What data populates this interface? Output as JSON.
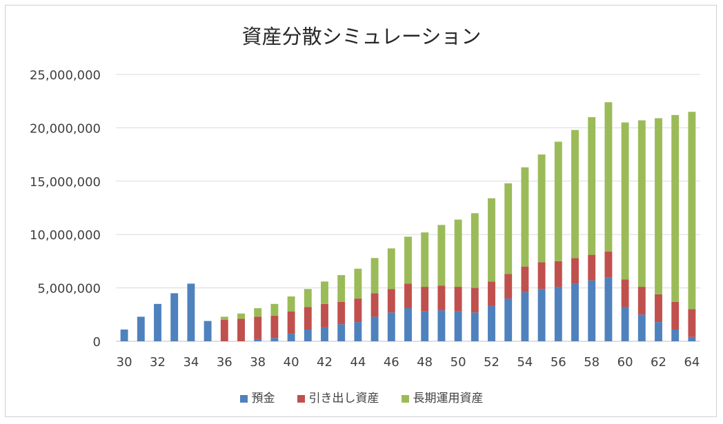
{
  "chart_data": {
    "type": "bar",
    "stacked": true,
    "title": "資産分散シミュレーション",
    "xlabel": "",
    "ylabel": "",
    "ylim": [
      0,
      25000000
    ],
    "yticks": [
      0,
      5000000,
      10000000,
      15000000,
      20000000,
      25000000
    ],
    "ytick_labels": [
      "0",
      "5,000,000",
      "10,000,000",
      "15,000,000",
      "20,000,000",
      "25,000,000"
    ],
    "categories": [
      30,
      31,
      32,
      33,
      34,
      35,
      36,
      37,
      38,
      39,
      40,
      41,
      42,
      43,
      44,
      45,
      46,
      47,
      48,
      49,
      50,
      51,
      52,
      53,
      54,
      55,
      56,
      57,
      58,
      59,
      60,
      61,
      62,
      63,
      64
    ],
    "xtick_labels": [
      "30",
      "",
      "32",
      "",
      "34",
      "",
      "36",
      "",
      "38",
      "",
      "40",
      "",
      "42",
      "",
      "44",
      "",
      "46",
      "",
      "48",
      "",
      "50",
      "",
      "52",
      "",
      "54",
      "",
      "56",
      "",
      "58",
      "",
      "60",
      "",
      "62",
      "",
      "64"
    ],
    "grid": true,
    "legend_position": "bottom",
    "series": [
      {
        "name": "預金",
        "color": "#4f81bd",
        "values": [
          1100000,
          2300000,
          3500000,
          4500000,
          5400000,
          1900000,
          0,
          0,
          200000,
          300000,
          700000,
          1100000,
          1300000,
          1600000,
          1800000,
          2300000,
          2700000,
          3100000,
          2800000,
          2900000,
          2800000,
          2700000,
          3300000,
          4000000,
          4600000,
          4900000,
          5100000,
          5400000,
          5700000,
          6000000,
          3200000,
          2500000,
          1800000,
          1100000,
          400000
        ]
      },
      {
        "name": "引き出し資産",
        "color": "#c0504d",
        "values": [
          0,
          0,
          0,
          0,
          0,
          0,
          2000000,
          2100000,
          2100000,
          2100000,
          2100000,
          2100000,
          2200000,
          2100000,
          2200000,
          2200000,
          2200000,
          2300000,
          2300000,
          2300000,
          2300000,
          2300000,
          2300000,
          2300000,
          2400000,
          2500000,
          2400000,
          2400000,
          2400000,
          2400000,
          2600000,
          2600000,
          2600000,
          2600000,
          2600000
        ]
      },
      {
        "name": "長期運用資産",
        "color": "#9bbb59",
        "values": [
          0,
          0,
          0,
          0,
          0,
          0,
          300000,
          500000,
          800000,
          1100000,
          1400000,
          1700000,
          2100000,
          2500000,
          2800000,
          3300000,
          3800000,
          4400000,
          5100000,
          5700000,
          6300000,
          7000000,
          7800000,
          8500000,
          9300000,
          10100000,
          11200000,
          12000000,
          12900000,
          14000000,
          14700000,
          15600000,
          16500000,
          17500000,
          18500000
        ]
      }
    ]
  }
}
